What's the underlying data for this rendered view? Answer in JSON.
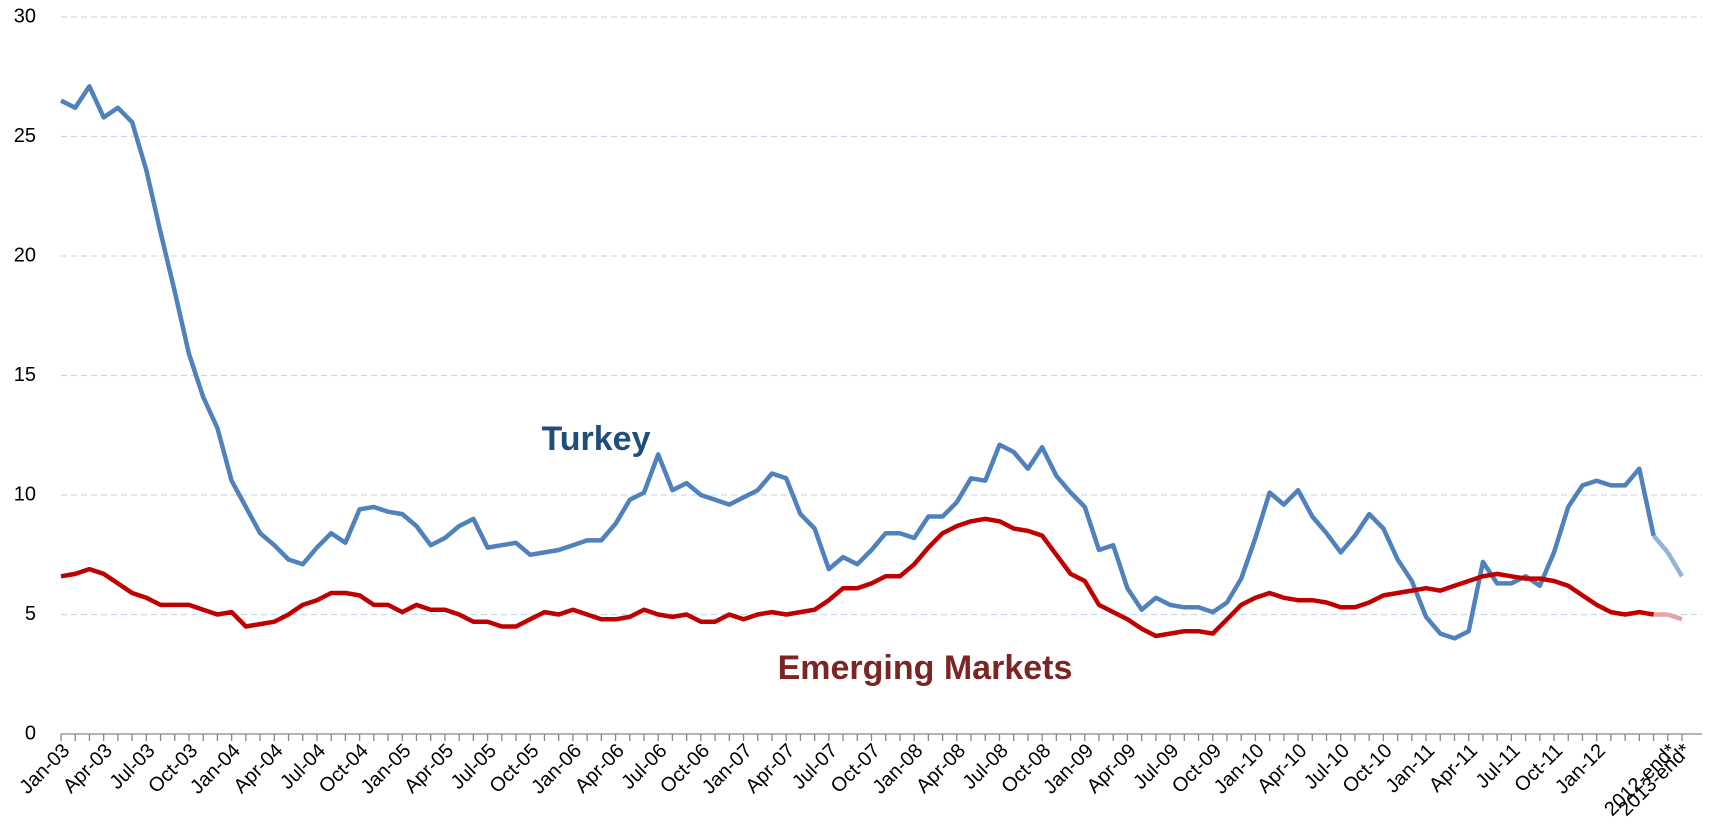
{
  "chart_data": {
    "type": "line",
    "categories": [
      "Jan-03",
      null,
      null,
      "Apr-03",
      null,
      null,
      "Jul-03",
      null,
      null,
      "Oct-03",
      null,
      null,
      "Jan-04",
      null,
      null,
      "Apr-04",
      null,
      null,
      "Jul-04",
      null,
      null,
      "Oct-04",
      null,
      null,
      "Jan-05",
      null,
      null,
      "Apr-05",
      null,
      null,
      "Jul-05",
      null,
      null,
      "Oct-05",
      null,
      null,
      "Jan-06",
      null,
      null,
      "Apr-06",
      null,
      null,
      "Jul-06",
      null,
      null,
      "Oct-06",
      null,
      null,
      "Jan-07",
      null,
      null,
      "Apr-07",
      null,
      null,
      "Jul-07",
      null,
      null,
      "Oct-07",
      null,
      null,
      "Jan-08",
      null,
      null,
      "Apr-08",
      null,
      null,
      "Jul-08",
      null,
      null,
      "Oct-08",
      null,
      null,
      "Jan-09",
      null,
      null,
      "Apr-09",
      null,
      null,
      "Jul-09",
      null,
      null,
      "Oct-09",
      null,
      null,
      "Jan-10",
      null,
      null,
      "Apr-10",
      null,
      null,
      "Jul-10",
      null,
      null,
      "Oct-10",
      null,
      null,
      "Jan-11",
      null,
      null,
      "Apr-11",
      null,
      null,
      "Jul-11",
      null,
      null,
      "Oct-11",
      null,
      null,
      "Jan-12",
      null,
      null,
      null,
      null,
      "2012-end*",
      "2013-end*"
    ],
    "series": [
      {
        "name": "Turkey",
        "color": "#4f81bd",
        "forecast_color": "#95b3d7",
        "label_color": "#1f4e79",
        "values": [
          26.5,
          26.2,
          27.1,
          25.8,
          26.2,
          25.6,
          23.6,
          21.0,
          18.5,
          15.9,
          14.1,
          12.8,
          10.6,
          9.5,
          8.4,
          7.9,
          7.3,
          7.1,
          7.8,
          8.4,
          8.0,
          9.4,
          9.5,
          9.3,
          9.2,
          8.7,
          7.9,
          8.2,
          8.7,
          9.0,
          7.8,
          7.9,
          8.0,
          7.5,
          7.6,
          7.7,
          7.9,
          8.1,
          8.1,
          8.8,
          9.8,
          10.1,
          11.7,
          10.2,
          10.5,
          10.0,
          9.8,
          9.6,
          9.9,
          10.2,
          10.9,
          10.7,
          9.2,
          8.6,
          6.9,
          7.4,
          7.1,
          7.7,
          8.4,
          8.4,
          8.2,
          9.1,
          9.1,
          9.7,
          10.7,
          10.6,
          12.1,
          11.8,
          11.1,
          12.0,
          10.8,
          10.1,
          9.5,
          7.7,
          7.9,
          6.1,
          5.2,
          5.7,
          5.4,
          5.3,
          5.3,
          5.1,
          5.5,
          6.5,
          8.2,
          10.1,
          9.6,
          10.2,
          9.1,
          8.4,
          7.6,
          8.3,
          9.2,
          8.6,
          7.3,
          6.4,
          4.9,
          4.2,
          4.0,
          4.3,
          7.2,
          6.3,
          6.3,
          6.6,
          6.2,
          7.6,
          9.5,
          10.4,
          10.6,
          10.4,
          10.4,
          11.1,
          8.3,
          7.6,
          6.6
        ]
      },
      {
        "name": "Emerging Markets",
        "color": "#c00000",
        "forecast_color": "#e6a3a3",
        "label_color": "#7b2525",
        "values": [
          6.6,
          6.7,
          6.9,
          6.7,
          6.3,
          5.9,
          5.7,
          5.4,
          5.4,
          5.4,
          5.2,
          5.0,
          5.1,
          4.5,
          4.6,
          4.7,
          5.0,
          5.4,
          5.6,
          5.9,
          5.9,
          5.8,
          5.4,
          5.4,
          5.1,
          5.4,
          5.2,
          5.2,
          5.0,
          4.7,
          4.7,
          4.5,
          4.5,
          4.8,
          5.1,
          5.0,
          5.2,
          5.0,
          4.8,
          4.8,
          4.9,
          5.2,
          5.0,
          4.9,
          5.0,
          4.7,
          4.7,
          5.0,
          4.8,
          5.0,
          5.1,
          5.0,
          5.1,
          5.2,
          5.6,
          6.1,
          6.1,
          6.3,
          6.6,
          6.6,
          7.1,
          7.8,
          8.4,
          8.7,
          8.9,
          9.0,
          8.9,
          8.6,
          8.5,
          8.3,
          7.5,
          6.7,
          6.4,
          5.4,
          5.1,
          4.8,
          4.4,
          4.1,
          4.2,
          4.3,
          4.3,
          4.2,
          4.8,
          5.4,
          5.7,
          5.9,
          5.7,
          5.6,
          5.6,
          5.5,
          5.3,
          5.3,
          5.5,
          5.8,
          5.9,
          6.0,
          6.1,
          6.0,
          6.2,
          6.4,
          6.6,
          6.7,
          6.6,
          6.5,
          6.5,
          6.4,
          6.2,
          5.8,
          5.4,
          5.1,
          5.0,
          5.1,
          5.0,
          5.0,
          4.8
        ]
      }
    ],
    "ylim": [
      0,
      30
    ],
    "yticks": [
      0,
      5,
      10,
      15,
      20,
      25,
      30
    ],
    "grid": true
  }
}
